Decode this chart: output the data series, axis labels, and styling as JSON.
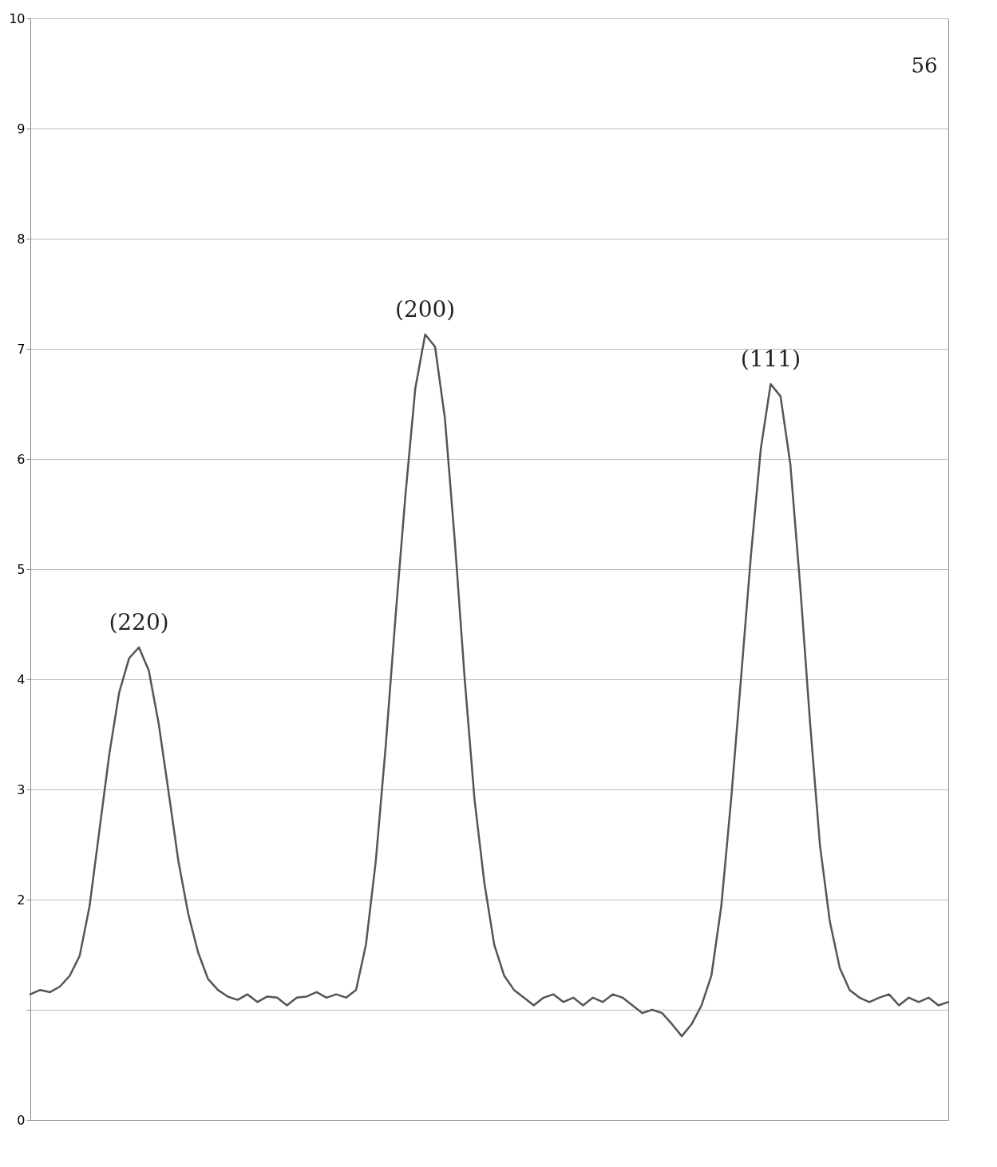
{
  "chart_data": {
    "type": "line",
    "categories": [
      null,
      null,
      null,
      null,
      null,
      null,
      null,
      null,
      null,
      null,
      null,
      null,
      null,
      null,
      null,
      null,
      null,
      null,
      null,
      null,
      null,
      null,
      null,
      null,
      null,
      null,
      null,
      null,
      null,
      null,
      null,
      null,
      null,
      null,
      null,
      null,
      null,
      null,
      null,
      null,
      null,
      null,
      null,
      null,
      null,
      null,
      null,
      null,
      null,
      null,
      null,
      null,
      null,
      null,
      null,
      null,
      null,
      null,
      null,
      null,
      null,
      null,
      null,
      null,
      null,
      null,
      null,
      null,
      null,
      null,
      null,
      null,
      null,
      null,
      null,
      null,
      null,
      null,
      null,
      null,
      null,
      null,
      null,
      null,
      null,
      null,
      null,
      null,
      null,
      null,
      null,
      null,
      null,
      null
    ],
    "series": [
      {
        "color": "#555555",
        "values": [
          1.14,
          1.18,
          1.16,
          1.21,
          1.31,
          1.49,
          1.94,
          2.63,
          3.32,
          3.88,
          4.19,
          4.29,
          4.08,
          3.6,
          2.98,
          2.35,
          1.87,
          1.52,
          1.28,
          1.18,
          1.12,
          1.09,
          1.14,
          1.07,
          1.12,
          1.11,
          1.04,
          1.11,
          1.12,
          1.16,
          1.11,
          1.14,
          1.11,
          1.18,
          1.59,
          2.35,
          3.39,
          4.57,
          5.67,
          6.64,
          7.13,
          7.02,
          6.37,
          5.26,
          4.01,
          2.91,
          2.15,
          1.59,
          1.31,
          1.18,
          1.11,
          1.04,
          1.11,
          1.14,
          1.07,
          1.11,
          1.04,
          1.11,
          1.07,
          1.14,
          1.11,
          1.04,
          0.97,
          1.0,
          0.97,
          0.87,
          0.76,
          0.87,
          1.04,
          1.31,
          1.94,
          2.91,
          4.01,
          5.12,
          6.09,
          6.68,
          6.57,
          5.95,
          4.84,
          3.6,
          2.49,
          1.8,
          1.38,
          1.18,
          1.11,
          1.07,
          1.11,
          1.14,
          1.04,
          1.11,
          1.07,
          1.11,
          1.04,
          1.07
        ]
      }
    ],
    "ylim": [
      0,
      10
    ],
    "yticks": [
      0,
      {
        "value": 1,
        "label": null
      },
      2,
      3,
      4,
      5,
      6,
      7,
      8,
      9,
      10
    ],
    "grid": "y",
    "marker": "none",
    "line_style": "solid",
    "tick_labels": "y",
    "annotations": [
      {
        "text": "(220)",
        "y": 4.29
      },
      {
        "text": "(200)",
        "y": 7.13
      },
      {
        "text": "(111)",
        "y": 6.68
      },
      "56"
    ]
  }
}
